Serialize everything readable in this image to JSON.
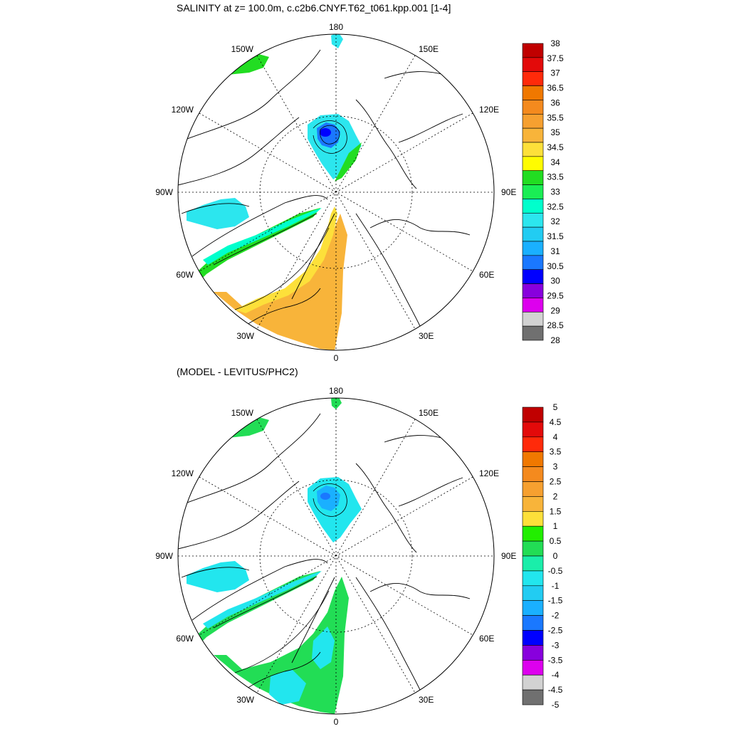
{
  "panels": [
    {
      "title": "SALINITY at z= 100.0m, c.c2b6.CNYF.T62_t061.kpp.001 [1-4]",
      "colorbar": {
        "labels": [
          "38",
          "37.5",
          "37",
          "36.5",
          "36",
          "35.5",
          "35",
          "34.5",
          "34",
          "33.5",
          "33",
          "32.5",
          "32",
          "31.5",
          "31",
          "30.5",
          "30",
          "29.5",
          "29",
          "28.5",
          "28"
        ],
        "colors": [
          "#c00000",
          "#e30a0a",
          "#ff2a0a",
          "#f07800",
          "#f48a1e",
          "#f6a030",
          "#f8b43a",
          "#fde03a",
          "#fffc00",
          "#22dd22",
          "#1aee55",
          "#00ffcc",
          "#2ce6ee",
          "#22ccf2",
          "#1ab0ff",
          "#1a78ff",
          "#0000ff",
          "#8800dd",
          "#dd00ee",
          "#d2d2d2",
          "#707070"
        ]
      }
    },
    {
      "title": "(MODEL - LEVITUS/PHC2)",
      "colorbar": {
        "labels": [
          "5",
          "4.5",
          "4",
          "3.5",
          "3",
          "2.5",
          "2",
          "1.5",
          "1",
          "0.5",
          "0",
          "-0.5",
          "-1",
          "-1.5",
          "-2",
          "-2.5",
          "-3",
          "-3.5",
          "-4",
          "-4.5",
          "-5"
        ],
        "colors": [
          "#c00000",
          "#e30a0a",
          "#ff2a0a",
          "#f07800",
          "#f48a1e",
          "#f6a030",
          "#f8b43a",
          "#fde03a",
          "#22ee00",
          "#22dd55",
          "#1aeeaa",
          "#22e6ee",
          "#22ccf2",
          "#1ab0ff",
          "#1a78ff",
          "#0000ff",
          "#8800dd",
          "#dd00ee",
          "#d2d2d2",
          "#707070"
        ]
      }
    }
  ],
  "lon_labels": {
    "top": "180",
    "bottom": "0",
    "left": "90W",
    "right": "90E",
    "upper_left_outer": "150W",
    "upper_left_inner": "120W",
    "lower_left_inner": "60W",
    "lower_left_outer": "30W",
    "upper_right_outer": "150E",
    "upper_right_inner": "120E",
    "lower_right_inner": "60E",
    "lower_right_outer": "30E"
  }
}
